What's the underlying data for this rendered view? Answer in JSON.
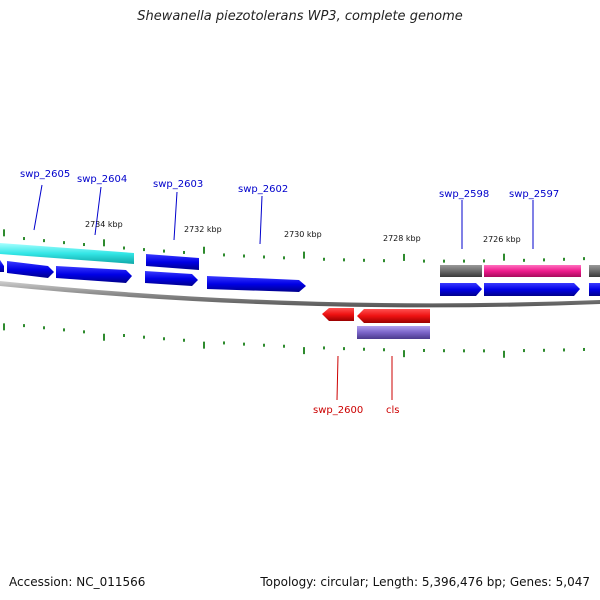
{
  "title": "Shewanella piezotolerans WP3, complete genome",
  "footer": {
    "accession": "Accession: NC_011566",
    "summary": "Topology: circular; Length: 5,396,476 bp; Genes: 5,047"
  },
  "colors": {
    "backbone": "#8a8a8a",
    "tick": "#2e8b2e",
    "forward_gene": "#0000e6",
    "reverse_gene": "#ee1111",
    "cyan_feature": "#33e6e6",
    "grey_feature": "#6b6b6b",
    "pink_feature": "#ee1a8c",
    "purple_feature": "#7a64c8",
    "forward_label": "#0000cc",
    "reverse_label": "#cc0000"
  },
  "scale_labels": [
    "2734 kbp",
    "2732 kbp",
    "2730 kbp",
    "2728 kbp",
    "2726 kbp"
  ],
  "gene_labels": {
    "forward": [
      "swp_2605",
      "swp_2604",
      "swp_2603",
      "swp_2602",
      "swp_2598",
      "swp_2597"
    ],
    "reverse": [
      "swp_2600",
      "cls"
    ]
  }
}
